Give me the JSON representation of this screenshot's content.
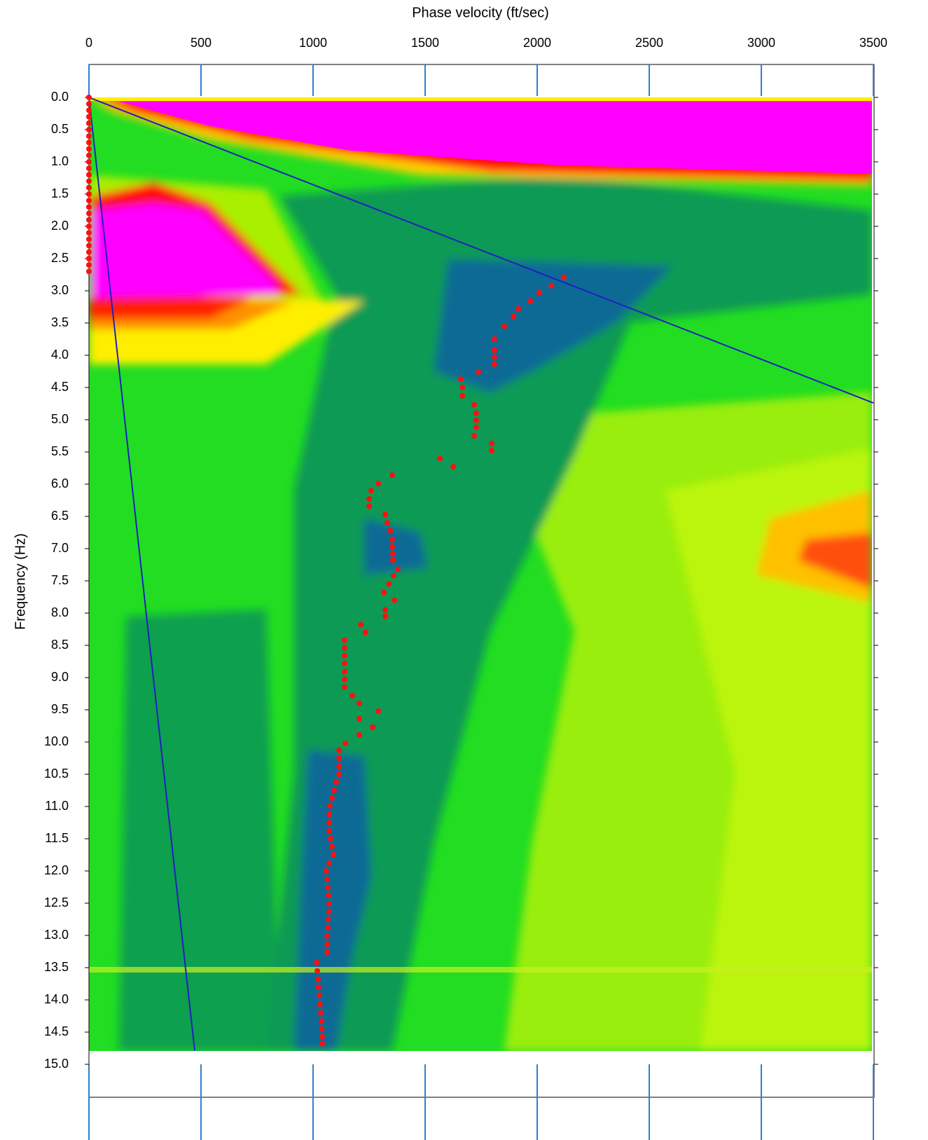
{
  "chart_data": {
    "type": "scatter",
    "x_label": "Phase velocity (ft/sec)",
    "y_label": "Frequency (Hz)",
    "xlim": [
      0,
      3500
    ],
    "xticks": [
      0,
      500,
      1000,
      1500,
      2000,
      2500,
      3000,
      3500
    ],
    "ylim": [
      -0.5,
      15.5
    ],
    "y_inverted": true,
    "yticks": [
      {
        "value": 0,
        "label": "0.0"
      },
      0.5,
      {
        "value": 1,
        "label": "1.0"
      },
      1.5,
      {
        "value": 2,
        "label": "2.0"
      },
      2.5,
      {
        "value": 3,
        "label": "3.0"
      },
      3.5,
      {
        "value": 4,
        "label": "4.0"
      },
      4.5,
      {
        "value": 5,
        "label": "5.0"
      },
      5.5,
      {
        "value": 6,
        "label": "6.0"
      },
      6.5,
      {
        "value": 7,
        "label": "7.0"
      },
      7.5,
      {
        "value": 8,
        "label": "8.0"
      },
      8.5,
      {
        "value": 9,
        "label": "9.0"
      },
      9.5,
      {
        "value": 10,
        "label": "10.0"
      },
      10.5,
      {
        "value": 11,
        "label": "11.0"
      },
      11.5,
      {
        "value": 12,
        "label": "12.0"
      },
      12.5,
      {
        "value": 13,
        "label": "13.0"
      },
      13.5,
      {
        "value": 14,
        "label": "14.0"
      },
      14.5,
      {
        "value": 15,
        "label": "15.0"
      }
    ],
    "tick_color": "#2f7fd0",
    "series": [
      {
        "type": "scatter",
        "color": "#ff1010",
        "x": [
          0,
          0,
          0,
          0,
          0,
          0,
          0,
          0,
          0,
          0,
          0,
          0,
          0,
          0,
          0,
          0,
          0,
          0,
          0,
          0,
          0,
          0,
          0,
          0,
          0,
          0,
          0,
          0,
          2119,
          2063,
          2009,
          1969,
          1916,
          1894,
          1853,
          1809,
          1809,
          1809,
          1809,
          1738,
          1659,
          1666,
          1666,
          1719,
          1728,
          1728,
          1728,
          1719,
          1797,
          1797,
          1566,
          1625,
          1353,
          1291,
          1259,
          1250,
          1250,
          1322,
          1331,
          1344,
          1353,
          1353,
          1356,
          1356,
          1378,
          1359,
          1338,
          1316,
          1363,
          1322,
          1322,
          1213,
          1234,
          1141,
          1141,
          1141,
          1141,
          1141,
          1141,
          1141,
          1175,
          1206,
          1291,
          1206,
          1266,
          1206,
          1144,
          1116,
          1116,
          1116,
          1116,
          1103,
          1094,
          1084,
          1075,
          1072,
          1072,
          1072,
          1078,
          1084,
          1091,
          1072,
          1059,
          1063,
          1066,
          1069,
          1072,
          1072,
          1066,
          1066,
          1063,
          1063,
          1063,
          1016,
          1019,
          1022,
          1025,
          1028,
          1031,
          1034,
          1038,
          1038,
          1041,
          1041
        ],
        "values": [
          0,
          0.1,
          0.2,
          0.3,
          0.4,
          0.5,
          0.6,
          0.7,
          0.8,
          0.9,
          1,
          1.1,
          1.2,
          1.3,
          1.4,
          1.5,
          1.6,
          1.7,
          1.8,
          1.9,
          2,
          2.1,
          2.2,
          2.3,
          2.4,
          2.5,
          2.6,
          2.7,
          2.79,
          2.92,
          3.03,
          3.16,
          3.28,
          3.4,
          3.55,
          3.75,
          3.92,
          4.03,
          4.14,
          4.26,
          4.37,
          4.5,
          4.63,
          4.77,
          4.9,
          5.01,
          5.12,
          5.25,
          5.37,
          5.48,
          5.6,
          5.73,
          5.86,
          5.99,
          6.1,
          6.23,
          6.34,
          6.47,
          6.6,
          6.72,
          6.86,
          6.97,
          7.08,
          7.18,
          7.32,
          7.42,
          7.55,
          7.68,
          7.8,
          7.95,
          8.05,
          8.18,
          8.3,
          8.42,
          8.54,
          8.66,
          8.78,
          8.91,
          9.03,
          9.15,
          9.28,
          9.4,
          9.52,
          9.64,
          9.77,
          9.89,
          10.02,
          10.13,
          10.25,
          10.38,
          10.5,
          10.62,
          10.75,
          10.87,
          10.99,
          11.12,
          11.25,
          11.38,
          11.5,
          11.62,
          11.75,
          11.88,
          12,
          12.13,
          12.26,
          12.38,
          12.51,
          12.63,
          12.75,
          12.88,
          13.01,
          13.14,
          13.26,
          13.42,
          13.55,
          13.68,
          13.8,
          13.93,
          14.07,
          14.2,
          14.33,
          14.45,
          14.57,
          14.68
        ]
      },
      {
        "type": "line",
        "color": "#2020c0",
        "x": [
          0,
          3500
        ],
        "values": [
          0,
          4.74
        ]
      },
      {
        "type": "line",
        "color": "#2020c0",
        "x": [
          0,
          472
        ],
        "values": [
          0,
          14.79
        ]
      }
    ]
  }
}
